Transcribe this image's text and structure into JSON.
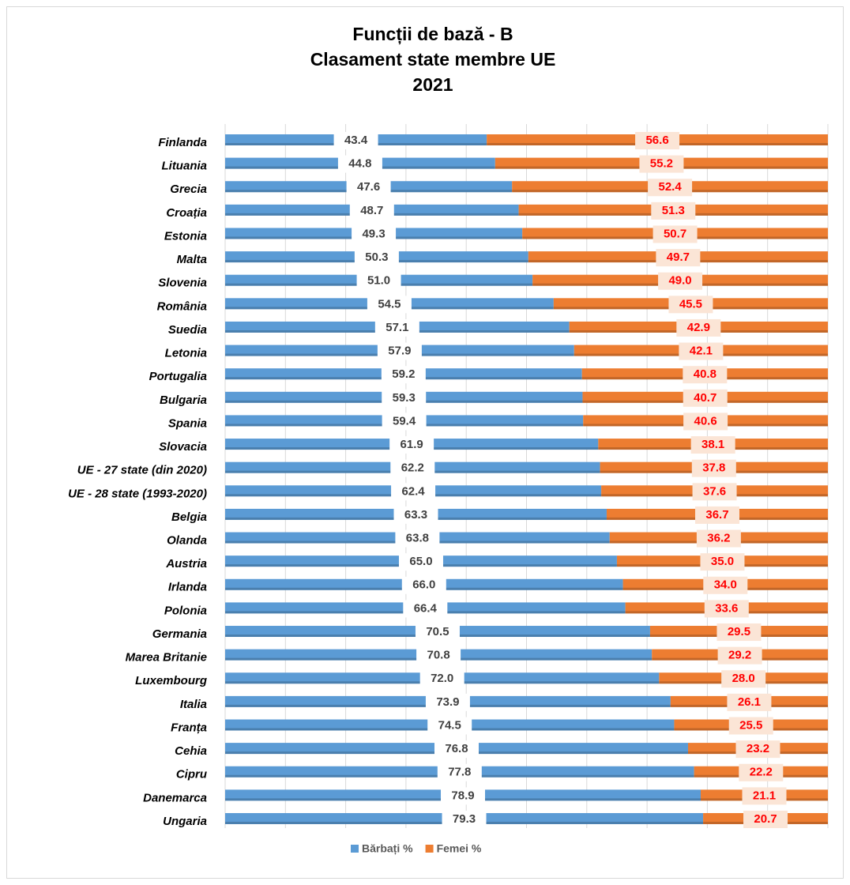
{
  "chart_data": {
    "type": "stacked_barh",
    "title": [
      "Funcții de bază - B",
      "Clasament state membre UE",
      "2021"
    ],
    "categories": [
      "Finlanda",
      "Lituania",
      "Grecia",
      "Croația",
      "Estonia",
      "Malta",
      "Slovenia",
      "România",
      "Suedia",
      "Letonia",
      "Portugalia",
      "Bulgaria",
      "Spania",
      "Slovacia",
      "UE - 27 state (din 2020)",
      "UE - 28 state (1993-2020)",
      "Belgia",
      "Olanda",
      "Austria",
      "Irlanda",
      "Polonia",
      "Germania",
      "Marea Britanie",
      "Luxembourg",
      "Italia",
      "Franța",
      "Cehia",
      "Cipru",
      "Danemarca",
      "Ungaria"
    ],
    "series": [
      {
        "name": "Bărbați %",
        "color": "#5b9bd5",
        "values": [
          43.4,
          44.8,
          47.6,
          48.7,
          49.3,
          50.3,
          51.0,
          54.5,
          57.1,
          57.9,
          59.2,
          59.3,
          59.4,
          61.9,
          62.2,
          62.4,
          63.3,
          63.8,
          65.0,
          66.0,
          66.4,
          70.5,
          70.8,
          72.0,
          73.9,
          74.5,
          76.8,
          77.8,
          78.9,
          79.3
        ],
        "value_labels": [
          "43.4",
          "44.8",
          "47.6",
          "48.7",
          "49.3",
          "50.3",
          "51.0",
          "54.5",
          "57.1",
          "57.9",
          "59.2",
          "59.3",
          "59.4",
          "61.9",
          "62.2",
          "62.4",
          "63.3",
          "63.8",
          "65.0",
          "66.0",
          "66.4",
          "70.5",
          "70.8",
          "72.0",
          "73.9",
          "74.5",
          "76.8",
          "77.8",
          "78.9",
          "79.3"
        ]
      },
      {
        "name": "Femei %",
        "color": "#ed7d31",
        "values": [
          56.6,
          55.2,
          52.4,
          51.3,
          50.7,
          49.7,
          49.0,
          45.5,
          42.9,
          42.1,
          40.8,
          40.7,
          40.6,
          38.1,
          37.8,
          37.6,
          36.7,
          36.2,
          35.0,
          34.0,
          33.6,
          29.5,
          29.2,
          28.0,
          26.1,
          25.5,
          23.2,
          22.2,
          21.1,
          20.7
        ],
        "value_labels": [
          "56.6",
          "55.2",
          "52.4",
          "51.3",
          "50.7",
          "49.7",
          "49.0",
          "45.5",
          "42.9",
          "42.1",
          "40.8",
          "40.7",
          "40.6",
          "38.1",
          "37.8",
          "37.6",
          "36.7",
          "36.2",
          "35.0",
          "34.0",
          "33.6",
          "29.5",
          "29.2",
          "28.0",
          "26.1",
          "25.5",
          "23.2",
          "22.2",
          "21.1",
          "20.7"
        ]
      }
    ],
    "xlim": [
      0,
      100
    ],
    "xticks": [
      0,
      10,
      20,
      30,
      40,
      50,
      60,
      70,
      80,
      90,
      100
    ],
    "grid": true,
    "legend": "bottom"
  }
}
